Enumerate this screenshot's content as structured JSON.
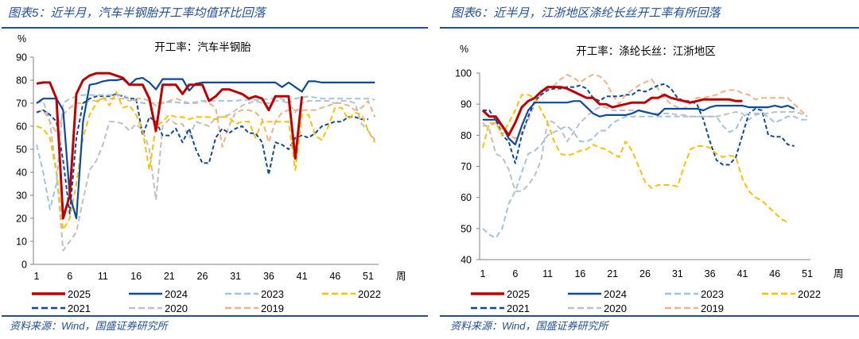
{
  "chart_data": [
    {
      "type": "line",
      "figure_title": "图表5：近半月，汽车半钢胎开工率均值环比回落",
      "title": "开工率：汽车半钢胎",
      "unit_label": "%",
      "xlabel": "周",
      "xticks": [
        1,
        6,
        11,
        16,
        21,
        26,
        31,
        36,
        41,
        46,
        51
      ],
      "yticks": [
        0,
        10,
        20,
        30,
        40,
        50,
        60,
        70,
        80,
        90
      ],
      "ylim": [
        0,
        90
      ],
      "xlim": [
        1,
        52
      ],
      "legend_placement": "bottom",
      "source": "资料来源：Wind，国盛证券研究所",
      "series": [
        {
          "name": "2019",
          "color": "#F4B183",
          "dash": true,
          "values": [
            66,
            67,
            62,
            57,
            65,
            68,
            70,
            70,
            71,
            71,
            72,
            72,
            72,
            72,
            71,
            72,
            72,
            71,
            69,
            70,
            71,
            72,
            71,
            70,
            70,
            71,
            70,
            68,
            51,
            60,
            66,
            67,
            67,
            66,
            63,
            53,
            62,
            66,
            67,
            67,
            67,
            67,
            67,
            68,
            69,
            70,
            70,
            69,
            67,
            68,
            71,
            64
          ]
        },
        {
          "name": "2020",
          "color": "#BFBFBF",
          "dash": true,
          "values": [
            70,
            71,
            62,
            40,
            6,
            10,
            14,
            28,
            41,
            45,
            52,
            62,
            62,
            61,
            58,
            61,
            58,
            50,
            28,
            60,
            63,
            61,
            61,
            55,
            62,
            61,
            60,
            64,
            64,
            65,
            67,
            69,
            70,
            71,
            70,
            70,
            71,
            71,
            70,
            66,
            70,
            71,
            71,
            71,
            71,
            70,
            71,
            71,
            70,
            61,
            58,
            54
          ]
        },
        {
          "name": "2021",
          "color": "#0B4A9E",
          "dash": true,
          "values": [
            66,
            67,
            65,
            62,
            45,
            22,
            55,
            70,
            72,
            73,
            73,
            73,
            74,
            73,
            72,
            72,
            56,
            64,
            62,
            56,
            56,
            59,
            53,
            59,
            50,
            44,
            44,
            55,
            59,
            57,
            59,
            60,
            57,
            57,
            53,
            39,
            53,
            52,
            50,
            55,
            56,
            55,
            57,
            60,
            61,
            62,
            62,
            64,
            64,
            63,
            63
          ]
        },
        {
          "name": "2022",
          "color": "#FFC000",
          "dash": true,
          "values": [
            60,
            59,
            55,
            40,
            15,
            20,
            35,
            55,
            65,
            70,
            73,
            69,
            75,
            68,
            69,
            65,
            58,
            41,
            60,
            62,
            65,
            64,
            64,
            63,
            64,
            64,
            64,
            63,
            64,
            64,
            61,
            62,
            62,
            55,
            62,
            62,
            62,
            62,
            62,
            41,
            65,
            65,
            56,
            54,
            60,
            68,
            68,
            63,
            66,
            65,
            58,
            53
          ]
        },
        {
          "name": "2023",
          "color": "#9DC3E6",
          "dash": true,
          "values": [
            52,
            40,
            24,
            35,
            70,
            72,
            73,
            73.5,
            73.5,
            73.5,
            73.5,
            73.5,
            73.5,
            73.5,
            72,
            71,
            70,
            70,
            70,
            70.5,
            70.5,
            70.5,
            70,
            70,
            70.5,
            71,
            71,
            71,
            71,
            71,
            71,
            71.5,
            71.5,
            71.5,
            71.5,
            72,
            72,
            72,
            70,
            72,
            72.5,
            73,
            72.5,
            72,
            72,
            72,
            72,
            72,
            72,
            72,
            72,
            71.5
          ]
        },
        {
          "name": "2024",
          "color": "#0B4A9E",
          "dash": false,
          "values": [
            70,
            72,
            72,
            72,
            67,
            30,
            20,
            62,
            78,
            78.5,
            79.5,
            80,
            80,
            80.5,
            78,
            80.5,
            81,
            79,
            76,
            80.5,
            80.5,
            80.5,
            80.5,
            75.5,
            78.5,
            79,
            79,
            79,
            79,
            79,
            79,
            79,
            79,
            79,
            79,
            79,
            79,
            77,
            79,
            77,
            75,
            79.5,
            79.5,
            79,
            79,
            79,
            79,
            79,
            79,
            79,
            79,
            79
          ]
        },
        {
          "name": "2025",
          "color": "#C00000",
          "dash": false,
          "values": [
            78.5,
            79,
            79,
            72,
            20,
            30,
            74,
            80,
            82,
            83,
            83,
            83,
            82,
            81,
            78,
            78,
            78,
            72,
            58,
            78,
            78,
            78,
            74,
            78,
            78,
            78,
            71,
            73,
            76,
            76,
            75,
            74,
            72,
            73,
            72,
            67,
            73,
            73,
            73,
            46,
            73
          ]
        }
      ]
    },
    {
      "type": "line",
      "figure_title": "图表6：近半月，江浙地区涤纶长丝开工率有所回落",
      "title": "开工率：涤纶长丝：江浙地区",
      "unit_label": "%",
      "xlabel": "周",
      "xticks": [
        1,
        6,
        11,
        16,
        21,
        26,
        31,
        36,
        41,
        46,
        51
      ],
      "yticks": [
        40,
        50,
        60,
        70,
        80,
        90,
        100
      ],
      "ylim": [
        40,
        100
      ],
      "xlim": [
        1,
        52
      ],
      "legend_placement": "bottom",
      "source": "资料来源：Wind，国盛证券研究所",
      "series": [
        {
          "name": "2019",
          "color": "#F4B183",
          "dash": true,
          "values": [
            83,
            83,
            84,
            82,
            80,
            79,
            81,
            85,
            90,
            93,
            95,
            96,
            98,
            99.5,
            98.5,
            97,
            98.5,
            99.5,
            99,
            97,
            93,
            90,
            93,
            94.5,
            96,
            97,
            98,
            95,
            92,
            90,
            89,
            88.5,
            90.5,
            92,
            92,
            92.5,
            93,
            94,
            94.5,
            94.5,
            93.5,
            93,
            91.5,
            92,
            92,
            92,
            92,
            92,
            90,
            88,
            86
          ]
        },
        {
          "name": "2020",
          "color": "#BFBFBF",
          "dash": true,
          "values": [
            84,
            82,
            74,
            73,
            69,
            62,
            62,
            64,
            67,
            72,
            85,
            84,
            82,
            78,
            81,
            84,
            86,
            88,
            89,
            89,
            88,
            88,
            88,
            88,
            88,
            87.5,
            87,
            87,
            87,
            87,
            86.5,
            86.5,
            86,
            86,
            86,
            86,
            86,
            86.5,
            87,
            87.5,
            87,
            85,
            86.5,
            87,
            87,
            87.5,
            87.5,
            87.5,
            87.5,
            87,
            86
          ]
        },
        {
          "name": "2021",
          "color": "#0B4A9E",
          "dash": true,
          "values": [
            88,
            88,
            85,
            80,
            78,
            71,
            80,
            86,
            91,
            93,
            94.5,
            95,
            95,
            95.5,
            95.5,
            96,
            95,
            92,
            91,
            92.5,
            92.5,
            92.5,
            93,
            93,
            94.5,
            94,
            95,
            96,
            96.5,
            95,
            92,
            91,
            91,
            90,
            85,
            78,
            72,
            70.5,
            70.5,
            73,
            80,
            87,
            88.5,
            88,
            80,
            79.5,
            79.5,
            77,
            76.5
          ]
        },
        {
          "name": "2022",
          "color": "#FFC000",
          "dash": true,
          "values": [
            76,
            84,
            84,
            80,
            84,
            88,
            93,
            93,
            92,
            88,
            84,
            78,
            74,
            73.5,
            74,
            75,
            75.5,
            77,
            76,
            75.5,
            74,
            73,
            78,
            75,
            70,
            65,
            63,
            64,
            64,
            64,
            63.5,
            70,
            75.5,
            76.5,
            76.5,
            76,
            74,
            73,
            73.5,
            73,
            66,
            62,
            60,
            59,
            57,
            55,
            53,
            52
          ]
        },
        {
          "name": "2023",
          "color": "#9DC3E6",
          "dash": true,
          "values": [
            50,
            48,
            47,
            50,
            58,
            62,
            68,
            74,
            75,
            77,
            80,
            81,
            82,
            83,
            81,
            78,
            78,
            79,
            81.5,
            81.5,
            84,
            85,
            86,
            86,
            86,
            86,
            86,
            86,
            86,
            86,
            86,
            86,
            86,
            86,
            86,
            86,
            86,
            83,
            81,
            82,
            86,
            87,
            87,
            87,
            86,
            84,
            85,
            86,
            86,
            85,
            85
          ]
        },
        {
          "name": "2024",
          "color": "#0B4A9E",
          "dash": false,
          "values": [
            85,
            85,
            85,
            83,
            79,
            77,
            83,
            88,
            90.5,
            90.5,
            90.5,
            90.5,
            90.5,
            90.5,
            91,
            91,
            89,
            87,
            86,
            86.5,
            86.5,
            86.5,
            86.5,
            87,
            88,
            87.5,
            87,
            86.5,
            88.5,
            88.5,
            88.5,
            88.5,
            88.5,
            88.5,
            88,
            89,
            89.5,
            89.5,
            89.5,
            89.5,
            89.5,
            89,
            89,
            89,
            89,
            89.5,
            89,
            89.5,
            88.5
          ]
        },
        {
          "name": "2025",
          "color": "#C00000",
          "dash": false,
          "values": [
            88,
            86,
            86,
            83,
            80,
            84,
            89,
            91,
            92,
            94,
            95.5,
            95.5,
            95.5,
            95,
            94,
            93,
            92,
            92,
            90,
            90,
            89,
            89.5,
            90,
            90.5,
            90.5,
            90.5,
            92,
            92,
            93,
            92,
            91.5,
            91,
            90.5,
            91,
            91.5,
            91.5,
            91.5,
            91.5,
            91.5,
            91,
            91
          ]
        }
      ]
    }
  ]
}
